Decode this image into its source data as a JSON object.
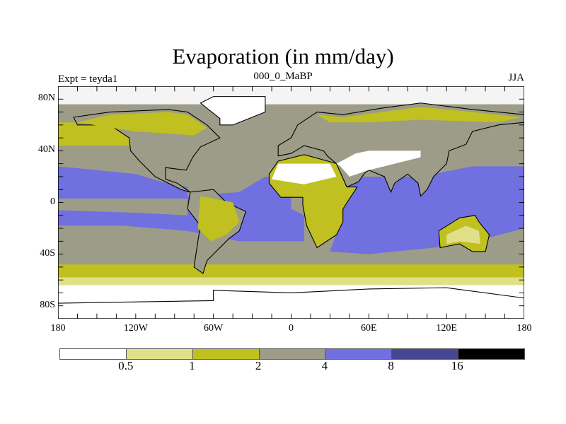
{
  "chart_data": {
    "type": "heatmap",
    "title": "Evaporation (in mm/day)",
    "left_subtitle": "Expt = teyda1",
    "center_subtitle": "000_0_MaBP",
    "right_subtitle": "JJA",
    "x_ticks": [
      "180",
      "120W",
      "60W",
      "0",
      "60E",
      "120E",
      "180"
    ],
    "x_tick_values": [
      -180,
      -120,
      -60,
      0,
      60,
      120,
      180
    ],
    "y_ticks": [
      "80N",
      "40N",
      "0",
      "40S",
      "80S"
    ],
    "y_tick_values": [
      80,
      40,
      0,
      -40,
      -80
    ],
    "xlim": [
      -180,
      180
    ],
    "ylim": [
      -90,
      90
    ],
    "colorbar": {
      "levels": [
        "0.5",
        "1",
        "2",
        "4",
        "8",
        "16"
      ],
      "colors": [
        "#ffffff",
        "#e0e088",
        "#c0c020",
        "#9c9c88",
        "#7070e0",
        "#464690",
        "#000000"
      ]
    }
  }
}
